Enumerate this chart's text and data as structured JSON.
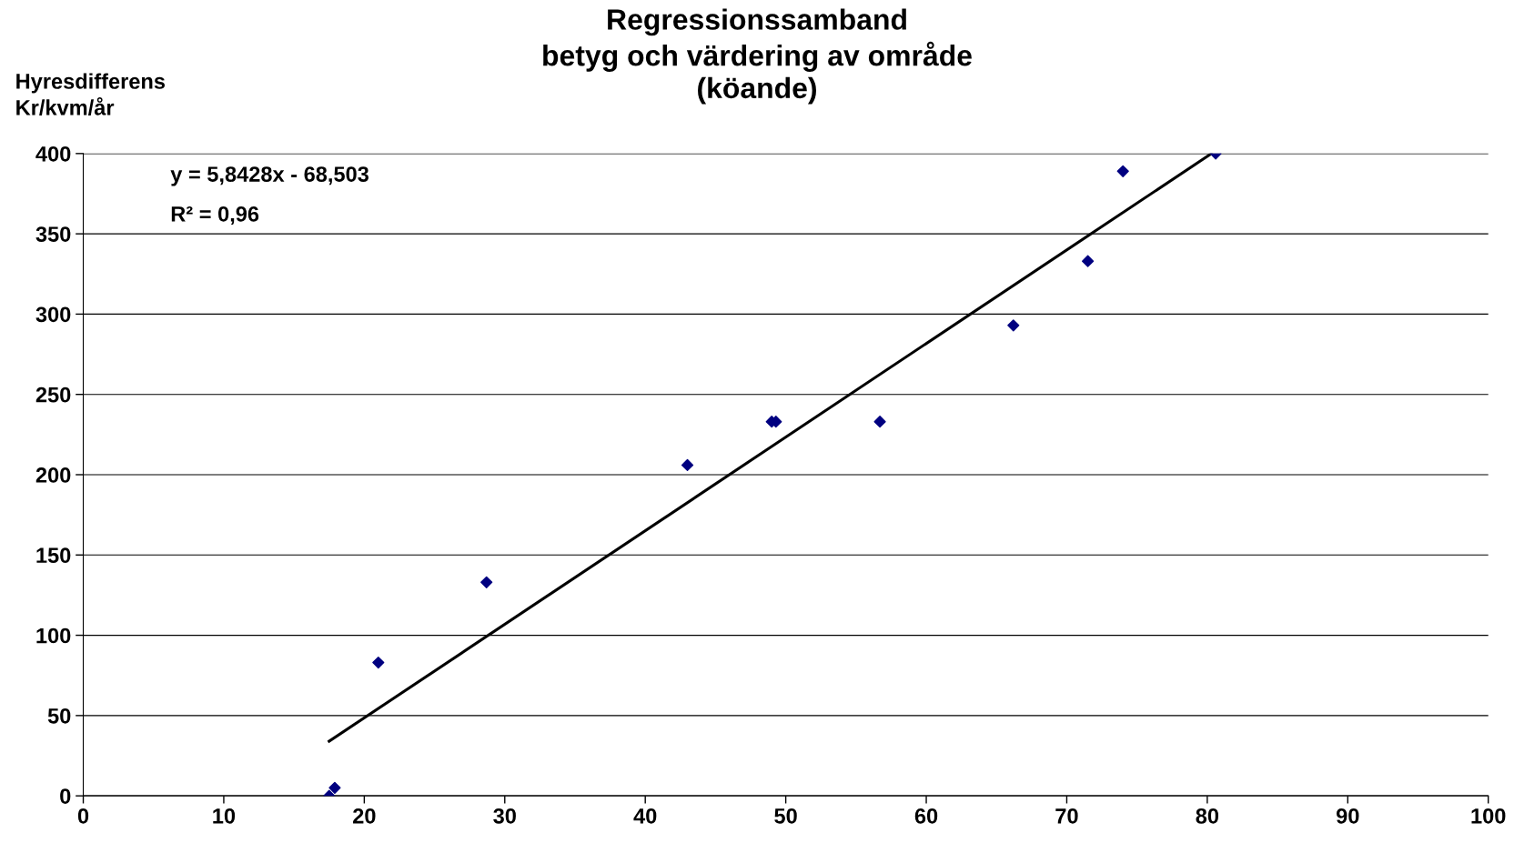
{
  "chart_data": {
    "type": "scatter",
    "title": "Regressionssamband\nbetyg och värdering av område\n(köande)",
    "ylabel": "Hyresdifferens\nKr/kvm/år",
    "annotations": [
      "y = 5,8428x - 68,503",
      "R² = 0,96"
    ],
    "series": [
      {
        "color": "#000080",
        "marker": "diamond",
        "x": [
          17.5,
          17.9,
          21.0,
          28.7,
          43.0,
          49.0,
          49.3,
          56.7,
          66.2,
          71.5,
          74.0,
          80.6
        ],
        "values": [
          0,
          5,
          83,
          133,
          206,
          233,
          233,
          233,
          293,
          333,
          389,
          400
        ]
      },
      {
        "type": "line",
        "color": "#000000",
        "marker": "none",
        "x": [
          17.5,
          80.3
        ],
        "values": [
          34,
          400
        ]
      }
    ],
    "xlim": [
      0,
      100
    ],
    "xticks": [
      0,
      10,
      20,
      30,
      40,
      50,
      60,
      70,
      80,
      90,
      100
    ],
    "ylim": [
      0,
      400
    ],
    "yticks": [
      0,
      50,
      100,
      150,
      200,
      250,
      300,
      350,
      400
    ],
    "grid": "y"
  }
}
